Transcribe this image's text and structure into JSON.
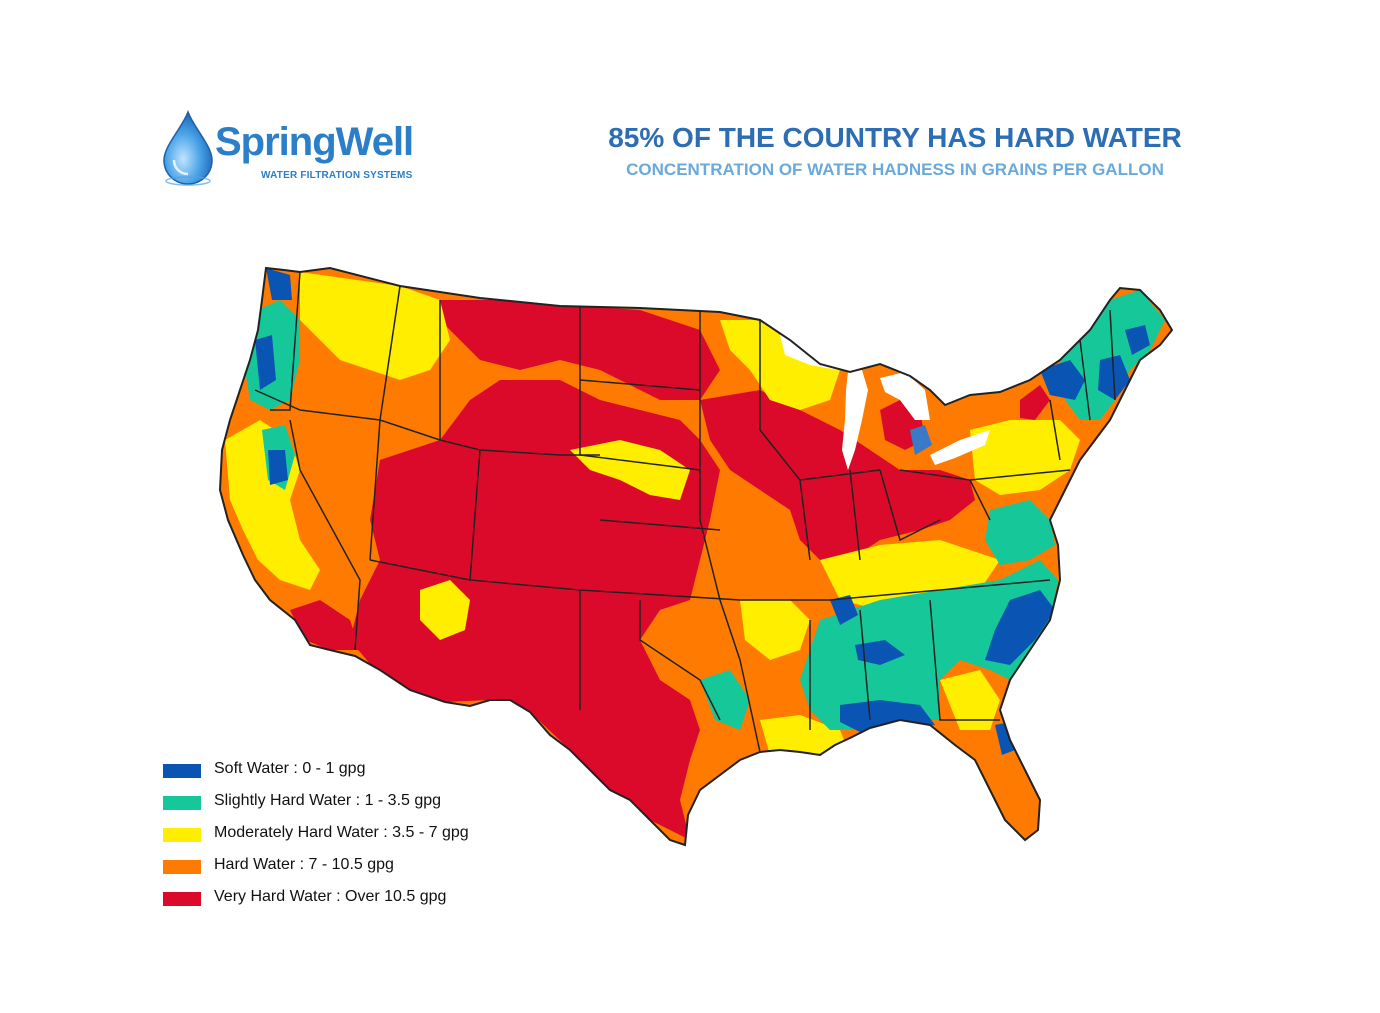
{
  "logo": {
    "brand_text": "SpringWell",
    "tagline": "WATER FILTRATION SYSTEMS",
    "icon": "water-drop-icon"
  },
  "header": {
    "title": "85% OF THE COUNTRY HAS HARD WATER",
    "subtitle": "CONCENTRATION OF WATER HADNESS IN GRAINS PER GALLON"
  },
  "colors": {
    "soft": "#0a55b4",
    "slightly_hard": "#16c79a",
    "moderately_hard": "#ffee00",
    "hard": "#ff7a00",
    "very_hard": "#dc0a2a",
    "title": "#2d6db3",
    "subtitle": "#6aa9dc"
  },
  "legend": {
    "items": [
      {
        "label": "Soft Water : 0 - 1  gpg",
        "category": "soft",
        "color": "#0a55b4"
      },
      {
        "label": "Slightly Hard Water : 1 - 3.5 gpg",
        "category": "slightly_hard",
        "color": "#16c79a"
      },
      {
        "label": "Moderately Hard Water : 3.5 - 7 gpg",
        "category": "moderately_hard",
        "color": "#ffee00"
      },
      {
        "label": "Hard Water : 7 - 10.5 gpg",
        "category": "hard",
        "color": "#ff7a00"
      },
      {
        "label": "Very Hard Water : Over 10.5 gpg",
        "category": "very_hard",
        "color": "#dc0a2a"
      }
    ]
  }
}
